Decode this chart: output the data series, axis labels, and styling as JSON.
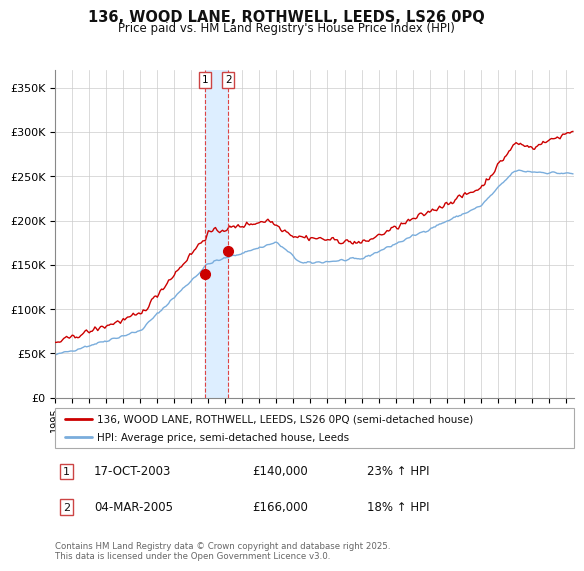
{
  "title_line1": "136, WOOD LANE, ROTHWELL, LEEDS, LS26 0PQ",
  "title_line2": "Price paid vs. HM Land Registry's House Price Index (HPI)",
  "ylabel_ticks": [
    "£0",
    "£50K",
    "£100K",
    "£150K",
    "£200K",
    "£250K",
    "£300K",
    "£350K"
  ],
  "ytick_vals": [
    0,
    50000,
    100000,
    150000,
    200000,
    250000,
    300000,
    350000
  ],
  "ylim": [
    0,
    370000
  ],
  "xlim_start": 1995.0,
  "xlim_end": 2025.5,
  "legend_line1": "136, WOOD LANE, ROTHWELL, LEEDS, LS26 0PQ (semi-detached house)",
  "legend_line2": "HPI: Average price, semi-detached house, Leeds",
  "transaction1_label": "1",
  "transaction1_date": "17-OCT-2003",
  "transaction1_price": "£140,000",
  "transaction1_hpi": "23% ↑ HPI",
  "transaction2_label": "2",
  "transaction2_date": "04-MAR-2005",
  "transaction2_price": "£166,000",
  "transaction2_hpi": "18% ↑ HPI",
  "footer": "Contains HM Land Registry data © Crown copyright and database right 2025.\nThis data is licensed under the Open Government Licence v3.0.",
  "line_color_red": "#cc0000",
  "line_color_blue": "#7aaddc",
  "vline_color": "#dd4444",
  "shade_color": "#ddeeff",
  "marker_color_red": "#cc0000",
  "background_color": "#ffffff",
  "grid_color": "#cccccc",
  "transaction1_x": 2003.8,
  "transaction2_x": 2005.17,
  "transaction1_y": 140000,
  "transaction2_y": 166000
}
